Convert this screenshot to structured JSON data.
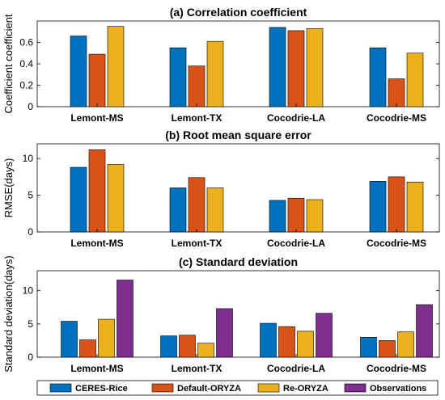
{
  "colors": {
    "ceres": "#0072BD",
    "default": "#D95319",
    "re": "#EDB120",
    "obs": "#7E2F8E"
  },
  "legend": [
    "CERES-Rice",
    "Default-ORYZA",
    "Re-ORYZA",
    "Observations"
  ],
  "chart_data": [
    {
      "type": "bar",
      "title": "(a) Correlation coefficient",
      "ylabel": "Coefficient coefficient",
      "categories": [
        "Lemont-MS",
        "Lemont-TX",
        "Cocodrie-LA",
        "Cocodrie-MS"
      ],
      "ylim": [
        0,
        0.8
      ],
      "yticks": [
        "0",
        "0.2",
        "0.4",
        "0.6"
      ],
      "series": [
        {
          "name": "CERES-Rice",
          "values": [
            0.66,
            0.55,
            0.74,
            0.55
          ]
        },
        {
          "name": "Default-ORYZA",
          "values": [
            0.49,
            0.38,
            0.71,
            0.26
          ]
        },
        {
          "name": "Re-ORYZA",
          "values": [
            0.75,
            0.61,
            0.73,
            0.5
          ]
        }
      ]
    },
    {
      "type": "bar",
      "title": "(b) Root mean square error",
      "ylabel": "RMSE(days)",
      "categories": [
        "Lemont-MS",
        "Lemont-TX",
        "Cocodrie-LA",
        "Cocodrie-MS"
      ],
      "ylim": [
        0,
        12
      ],
      "yticks": [
        "0",
        "5",
        "10"
      ],
      "series": [
        {
          "name": "CERES-Rice",
          "values": [
            8.8,
            6.0,
            4.3,
            6.9
          ]
        },
        {
          "name": "Default-ORYZA",
          "values": [
            11.2,
            7.4,
            4.6,
            7.5
          ]
        },
        {
          "name": "Re-ORYZA",
          "values": [
            9.2,
            6.0,
            4.4,
            6.8
          ]
        }
      ]
    },
    {
      "type": "bar",
      "title": "(c) Standard deviation",
      "ylabel": "Standard deviation(days)",
      "categories": [
        "Lemont-MS",
        "Lemont-TX",
        "Cocodrie-LA",
        "Cocodrie-MS"
      ],
      "ylim": [
        0,
        13
      ],
      "yticks": [
        "0",
        "5",
        "10"
      ],
      "series": [
        {
          "name": "CERES-Rice",
          "values": [
            5.4,
            3.2,
            5.1,
            3.0
          ]
        },
        {
          "name": "Default-ORYZA",
          "values": [
            2.6,
            3.3,
            4.6,
            2.5
          ]
        },
        {
          "name": "Re-ORYZA",
          "values": [
            5.7,
            2.1,
            3.9,
            3.8
          ]
        },
        {
          "name": "Observations",
          "values": [
            11.6,
            7.3,
            6.6,
            7.9
          ]
        }
      ]
    }
  ]
}
